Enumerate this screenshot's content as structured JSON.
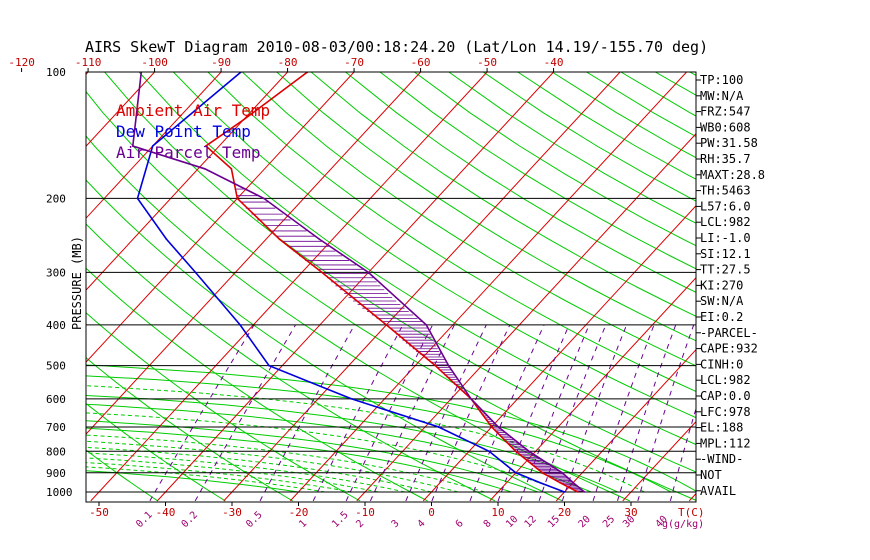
{
  "chart_data": {
    "type": "line",
    "title": "AIRS SkewT Diagram 2010-08-03/00:18:24.20 (Lat/Lon 14.19/-155.70 deg)",
    "ylabel": "PRESSURE (MB)",
    "xlabel": "T(C)",
    "mixing_label": "g(g/kg)",
    "pressure_ticks": [
      100,
      200,
      300,
      400,
      500,
      600,
      700,
      800,
      900,
      1000
    ],
    "top_temp_ticks": [
      -120,
      -110,
      -100,
      -90,
      -80,
      -70,
      -60,
      -50,
      -40
    ],
    "bottom_temp_ticks": [
      -50,
      -40,
      -30,
      -20,
      -10,
      0,
      10,
      20,
      30
    ],
    "mixing_ratio_ticks": [
      "0.1",
      "0.2",
      "0.5",
      "1",
      "1.5",
      "2",
      "3",
      "4",
      "6",
      "8",
      "10",
      "12",
      "15",
      "20",
      "25",
      "30",
      "40"
    ],
    "legend": [
      {
        "name": "Ambient Air Temp",
        "color": "#dd0000"
      },
      {
        "name": "Dew Point Temp",
        "color": "#0000dd"
      },
      {
        "name": "Air Parcel Temp",
        "color": "#6a0090"
      }
    ],
    "series": [
      {
        "name": "Ambient Air Temp",
        "points": [
          [
            100,
            -77
          ],
          [
            130,
            -80
          ],
          [
            150,
            -82
          ],
          [
            170,
            -75
          ],
          [
            200,
            -70
          ],
          [
            250,
            -58
          ],
          [
            300,
            -47
          ],
          [
            400,
            -30
          ],
          [
            500,
            -17
          ],
          [
            600,
            -7
          ],
          [
            700,
            0
          ],
          [
            800,
            7
          ],
          [
            900,
            14
          ],
          [
            950,
            18
          ],
          [
            1000,
            22
          ]
        ]
      },
      {
        "name": "Dew Point Temp",
        "points": [
          [
            100,
            -87
          ],
          [
            150,
            -90
          ],
          [
            200,
            -85
          ],
          [
            250,
            -75
          ],
          [
            300,
            -66
          ],
          [
            400,
            -52
          ],
          [
            500,
            -42
          ],
          [
            600,
            -25
          ],
          [
            700,
            -8
          ],
          [
            800,
            3
          ],
          [
            900,
            10
          ],
          [
            950,
            15
          ],
          [
            1000,
            20
          ]
        ]
      },
      {
        "name": "Air Parcel Temp",
        "points": [
          [
            100,
            -102
          ],
          [
            150,
            -93
          ],
          [
            170,
            -79
          ],
          [
            200,
            -66
          ],
          [
            250,
            -52
          ],
          [
            300,
            -40
          ],
          [
            400,
            -24
          ],
          [
            500,
            -15
          ],
          [
            600,
            -7
          ],
          [
            700,
            1
          ],
          [
            800,
            9
          ],
          [
            900,
            17
          ],
          [
            950,
            20
          ],
          [
            1000,
            23
          ]
        ]
      }
    ],
    "indices": [
      "TP:100",
      "MW:N/A",
      "FRZ:547",
      "WB0:608",
      "PW:31.58",
      "RH:35.7",
      "MAXT:28.8",
      "TH:5463",
      "L57:6.0",
      "LCL:982",
      "LI:-1.0",
      "SI:12.1",
      "TT:27.5",
      "KI:270",
      "SW:N/A",
      "EI:0.2",
      "-PARCEL-",
      "CAPE:932",
      "CINH:0",
      "LCL:982",
      "CAP:0.0",
      "LFC:978",
      "EL:188",
      "MPL:112",
      "-WIND-",
      "NOT",
      "AVAIL"
    ],
    "colors": {
      "isotherm": "#dd0000",
      "dry_adiabat": "#00cc00",
      "moist_adiabat": "#00cc00",
      "mixing_ratio": "#6a0090",
      "isobar": "#000000"
    }
  }
}
